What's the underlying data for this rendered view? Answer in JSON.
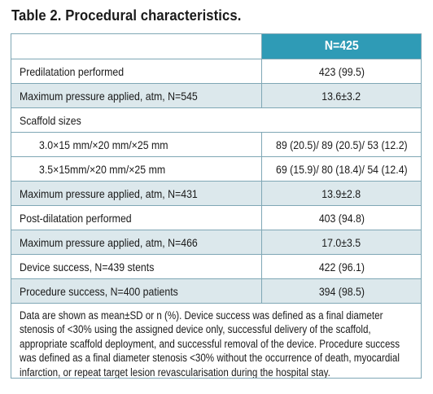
{
  "title": "Table 2. Procedural characteristics.",
  "table": {
    "header": {
      "label": "",
      "value": "N=425"
    },
    "rows": [
      {
        "label": "Predilatation performed",
        "value": "423 (99.5)"
      },
      {
        "label": "Maximum pressure applied, atm, N=545",
        "value": "13.6±3.2"
      },
      {
        "label": "Scaffold sizes",
        "value": ""
      },
      {
        "label": "3.0×15 mm/×20 mm/×25 mm",
        "value": "89 (20.5)/ 89 (20.5)/ 53 (12.2)"
      },
      {
        "label": "3.5×15mm/×20 mm/×25 mm",
        "value": "69 (15.9)/ 80 (18.4)/ 54 (12.4)"
      },
      {
        "label": "Maximum pressure applied, atm, N=431",
        "value": "13.9±2.8"
      },
      {
        "label": "Post-dilatation performed",
        "value": "403 (94.8)"
      },
      {
        "label": "Maximum pressure applied, atm, N=466",
        "value": "17.0±3.5"
      },
      {
        "label": "Device success, N=439 stents",
        "value": "422 (96.1)"
      },
      {
        "label": "Procedure success, N=400 patients",
        "value": "394 (98.5)"
      }
    ],
    "footnote": "Data are shown as mean±SD or n (%). Device success was defined as a final diameter stenosis of <30% using the assigned device only, successful delivery of the scaffold, appropriate scaffold deployment, and successful removal of the device. Procedure success was defined as a final diameter stenosis <30% without the occurrence of death, myocardial infarction, or repeat target lesion revascularisation during the hospital stay."
  }
}
